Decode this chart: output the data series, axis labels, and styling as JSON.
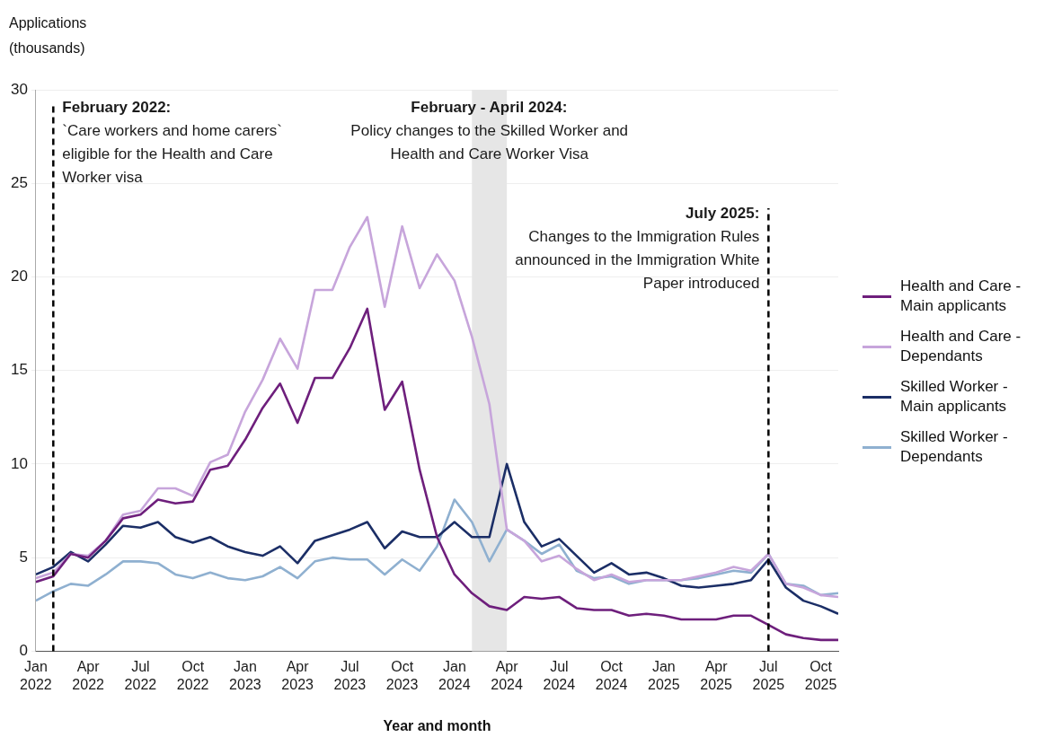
{
  "chart_data": {
    "type": "line",
    "xlabel": "Year and month",
    "ylabel": "Applications (thousands)",
    "x": [
      "2022-01",
      "2022-02",
      "2022-03",
      "2022-04",
      "2022-05",
      "2022-06",
      "2022-07",
      "2022-08",
      "2022-09",
      "2022-10",
      "2022-11",
      "2022-12",
      "2023-01",
      "2023-02",
      "2023-03",
      "2023-04",
      "2023-05",
      "2023-06",
      "2023-07",
      "2023-08",
      "2023-09",
      "2023-10",
      "2023-11",
      "2023-12",
      "2024-01",
      "2024-02",
      "2024-03",
      "2024-04",
      "2024-05",
      "2024-06",
      "2024-07",
      "2024-08",
      "2024-09",
      "2024-10",
      "2024-11",
      "2024-12",
      "2025-01",
      "2025-02",
      "2025-03",
      "2025-04",
      "2025-05",
      "2025-06",
      "2025-07",
      "2025-08",
      "2025-09",
      "2025-10",
      "2025-11"
    ],
    "series": [
      {
        "name": "Health and Care - Main applicants",
        "color": "#6e1f7c",
        "values": [
          3.7,
          4.0,
          5.2,
          5.0,
          5.9,
          7.1,
          7.3,
          8.1,
          7.9,
          8.0,
          9.7,
          9.9,
          11.3,
          13.0,
          14.3,
          12.2,
          14.6,
          14.6,
          16.2,
          18.3,
          12.9,
          14.4,
          9.7,
          6.1,
          4.1,
          3.1,
          2.4,
          2.2,
          2.9,
          2.8,
          2.9,
          2.3,
          2.2,
          2.2,
          1.9,
          2.0,
          1.9,
          1.7,
          1.7,
          1.7,
          1.9,
          1.9,
          1.4,
          0.9,
          0.7,
          0.6,
          0.6
        ]
      },
      {
        "name": "Health and Care - Dependants",
        "color": "#c7a5db",
        "values": [
          3.9,
          4.2,
          5.2,
          5.1,
          5.9,
          7.3,
          7.5,
          8.7,
          8.7,
          8.3,
          10.1,
          10.5,
          12.8,
          14.5,
          16.7,
          15.1,
          19.3,
          19.3,
          21.6,
          23.2,
          18.4,
          22.7,
          19.4,
          21.2,
          19.8,
          16.8,
          13.2,
          6.5,
          5.9,
          4.8,
          5.1,
          4.4,
          3.8,
          4.1,
          3.7,
          3.8,
          3.8,
          3.8,
          4.0,
          4.2,
          4.5,
          4.3,
          5.2,
          3.6,
          3.4,
          3.0,
          2.9
        ]
      },
      {
        "name": "Skilled Worker - Main applicants",
        "color": "#1b2e66",
        "values": [
          4.1,
          4.5,
          5.3,
          4.8,
          5.7,
          6.7,
          6.6,
          6.9,
          6.1,
          5.8,
          6.1,
          5.6,
          5.3,
          5.1,
          5.6,
          4.7,
          5.9,
          6.2,
          6.5,
          6.9,
          5.5,
          6.4,
          6.1,
          6.1,
          6.9,
          6.1,
          6.1,
          10.0,
          6.9,
          5.6,
          6.0,
          5.1,
          4.2,
          4.7,
          4.1,
          4.2,
          3.9,
          3.5,
          3.4,
          3.5,
          3.6,
          3.8,
          4.9,
          3.4,
          2.7,
          2.4,
          2.0
        ]
      },
      {
        "name": "Skilled Worker - Dependants",
        "color": "#8fb0d0",
        "values": [
          2.7,
          3.2,
          3.6,
          3.5,
          4.1,
          4.8,
          4.8,
          4.7,
          4.1,
          3.9,
          4.2,
          3.9,
          3.8,
          4.0,
          4.5,
          3.9,
          4.8,
          5.0,
          4.9,
          4.9,
          4.1,
          4.9,
          4.3,
          5.6,
          8.1,
          6.9,
          4.8,
          6.5,
          5.9,
          5.2,
          5.7,
          4.3,
          3.9,
          4.0,
          3.6,
          3.8,
          3.8,
          3.8,
          3.9,
          4.1,
          4.3,
          4.2,
          5.2,
          3.6,
          3.5,
          3.0,
          3.1
        ]
      }
    ],
    "xlim": [
      "2022-01",
      "2025-11"
    ],
    "xticks": [
      {
        "value": "2022-01",
        "label": "Jan 2022"
      },
      {
        "value": "2022-04",
        "label": "Apr 2022"
      },
      {
        "value": "2022-07",
        "label": "Jul 2022"
      },
      {
        "value": "2022-10",
        "label": "Oct 2022"
      },
      {
        "value": "2023-01",
        "label": "Jan 2023"
      },
      {
        "value": "2023-04",
        "label": "Apr 2023"
      },
      {
        "value": "2023-07",
        "label": "Jul 2023"
      },
      {
        "value": "2023-10",
        "label": "Oct 2023"
      },
      {
        "value": "2024-01",
        "label": "Jan 2024"
      },
      {
        "value": "2024-04",
        "label": "Apr 2024"
      },
      {
        "value": "2024-07",
        "label": "Jul 2024"
      },
      {
        "value": "2024-10",
        "label": "Oct 2024"
      },
      {
        "value": "2025-01",
        "label": "Jan 2025"
      },
      {
        "value": "2025-04",
        "label": "Apr 2025"
      },
      {
        "value": "2025-07",
        "label": "Jul 2025"
      },
      {
        "value": "2025-10",
        "label": "Oct 2025"
      }
    ],
    "ylim": [
      0,
      30
    ],
    "yticks": [
      0,
      5,
      10,
      15,
      20,
      25,
      30
    ],
    "grid": "y",
    "legend": "right",
    "marker": "none",
    "line_style": "solid",
    "ref_lines": [
      {
        "axis": "x",
        "value": "2022-02",
        "label": "February 2022:",
        "color": "#000000",
        "line_style": "dashed"
      },
      {
        "axis": "x",
        "value": "2025-07",
        "label": "July 2025:",
        "color": "#000000",
        "line_style": "dashed"
      }
    ],
    "bands": [
      {
        "axis": "x",
        "from": "2024-02",
        "to": "2024-04",
        "label": "February - April 2024:",
        "color": "#e6e6e6"
      }
    ],
    "annotations": [
      "Policy changes to the Skilled Worker and Health and Care Worker Visa",
      "`Care workers and home carers` eligible for the Health and Care Worker visa",
      "Changes to the Immigration Rules announced in the Immigration White Paper introduced"
    ]
  }
}
